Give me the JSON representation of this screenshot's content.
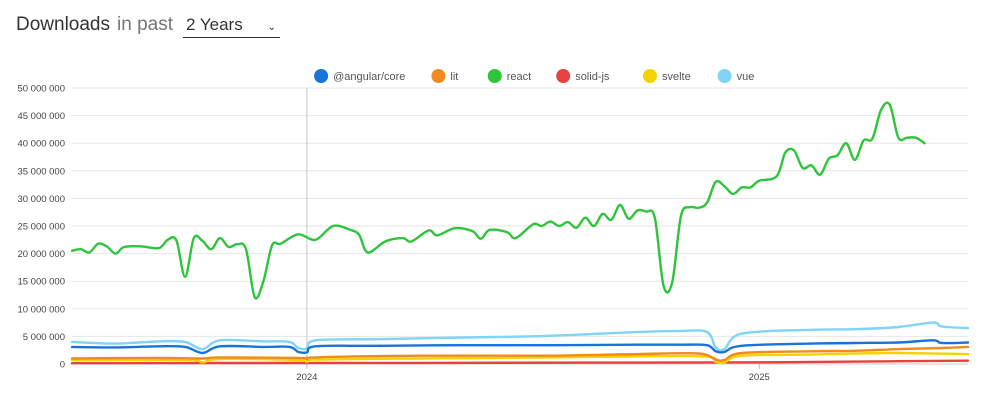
{
  "header": {
    "title": "Downloads",
    "subtitle": "in past",
    "range_value": "2 Years"
  },
  "chart_data": {
    "type": "line",
    "ylim": [
      0,
      50000000
    ],
    "y_ticks": [
      "0",
      "5 000 000",
      "10 000 000",
      "15 000 000",
      "20 000 000",
      "25 000 000",
      "30 000 000",
      "35 000 000",
      "40 000 000",
      "45 000 000",
      "50 000 000"
    ],
    "y_tick_values": [
      0,
      5000000,
      10000000,
      15000000,
      20000000,
      25000000,
      30000000,
      35000000,
      40000000,
      45000000,
      50000000
    ],
    "x_ticks": [
      {
        "label": "2024",
        "week": 27
      },
      {
        "label": "2025",
        "week": 79
      }
    ],
    "x_range": [
      0,
      103
    ],
    "gridlines": "horizontal",
    "legend_position": "top-center",
    "series": [
      {
        "name": "@angular/core",
        "color": "#1a73d9",
        "points": [
          [
            0,
            3100000
          ],
          [
            5,
            3000000
          ],
          [
            10,
            3200000
          ],
          [
            13,
            3100000
          ],
          [
            15,
            2000000
          ],
          [
            17,
            3200000
          ],
          [
            22,
            3100000
          ],
          [
            25,
            3100000
          ],
          [
            26,
            2200000
          ],
          [
            27,
            2100000
          ],
          [
            28,
            3200000
          ],
          [
            35,
            3300000
          ],
          [
            45,
            3400000
          ],
          [
            55,
            3400000
          ],
          [
            65,
            3500000
          ],
          [
            70,
            3500000
          ],
          [
            73,
            3400000
          ],
          [
            74,
            2300000
          ],
          [
            75,
            2200000
          ],
          [
            77,
            3300000
          ],
          [
            85,
            3700000
          ],
          [
            90,
            3800000
          ],
          [
            95,
            3900000
          ],
          [
            99,
            4300000
          ],
          [
            100,
            3800000
          ],
          [
            103,
            3900000
          ]
        ]
      },
      {
        "name": "lit",
        "color": "#f28a1e",
        "points": [
          [
            0,
            1000000
          ],
          [
            10,
            1100000
          ],
          [
            15,
            1000000
          ],
          [
            17,
            1200000
          ],
          [
            26,
            1100000
          ],
          [
            27,
            900000
          ],
          [
            28,
            1200000
          ],
          [
            40,
            1500000
          ],
          [
            55,
            1500000
          ],
          [
            65,
            1800000
          ],
          [
            72,
            1900000
          ],
          [
            74,
            800000
          ],
          [
            75,
            700000
          ],
          [
            77,
            2000000
          ],
          [
            85,
            2300000
          ],
          [
            90,
            2400000
          ],
          [
            95,
            2700000
          ],
          [
            100,
            2900000
          ],
          [
            103,
            3100000
          ]
        ]
      },
      {
        "name": "react",
        "color": "#2ec43c",
        "points": [
          [
            0,
            20500000
          ],
          [
            1,
            20800000
          ],
          [
            2,
            20200000
          ],
          [
            3,
            21800000
          ],
          [
            4,
            21300000
          ],
          [
            5,
            20000000
          ],
          [
            6,
            21200000
          ],
          [
            8,
            21300000
          ],
          [
            10,
            21000000
          ],
          [
            11,
            22500000
          ],
          [
            12,
            22400000
          ],
          [
            13,
            15800000
          ],
          [
            14,
            22800000
          ],
          [
            15,
            22300000
          ],
          [
            16,
            20800000
          ],
          [
            17,
            22800000
          ],
          [
            18,
            21200000
          ],
          [
            19,
            21700000
          ],
          [
            20,
            20800000
          ],
          [
            21,
            12100000
          ],
          [
            22,
            15000000
          ],
          [
            23,
            21500000
          ],
          [
            24,
            21800000
          ],
          [
            26,
            23500000
          ],
          [
            28,
            22500000
          ],
          [
            30,
            25000000
          ],
          [
            32,
            24300000
          ],
          [
            33,
            23400000
          ],
          [
            34,
            20200000
          ],
          [
            36,
            22200000
          ],
          [
            38,
            22800000
          ],
          [
            39,
            22200000
          ],
          [
            41,
            24200000
          ],
          [
            42,
            23300000
          ],
          [
            44,
            24600000
          ],
          [
            46,
            24100000
          ],
          [
            47,
            22700000
          ],
          [
            48,
            24300000
          ],
          [
            50,
            23900000
          ],
          [
            51,
            22800000
          ],
          [
            53,
            25300000
          ],
          [
            54,
            25000000
          ],
          [
            55,
            25800000
          ],
          [
            56,
            25000000
          ],
          [
            57,
            25700000
          ],
          [
            58,
            24700000
          ],
          [
            59,
            26500000
          ],
          [
            60,
            25000000
          ],
          [
            61,
            27200000
          ],
          [
            62,
            26100000
          ],
          [
            63,
            28800000
          ],
          [
            64,
            26300000
          ],
          [
            65,
            27800000
          ],
          [
            66,
            27600000
          ],
          [
            67,
            26500000
          ],
          [
            68,
            14200000
          ],
          [
            69,
            14800000
          ],
          [
            70,
            26800000
          ],
          [
            71,
            28400000
          ],
          [
            72,
            28300000
          ],
          [
            73,
            29200000
          ],
          [
            74,
            33000000
          ],
          [
            75,
            32200000
          ],
          [
            76,
            30800000
          ],
          [
            77,
            32000000
          ],
          [
            78,
            32000000
          ],
          [
            79,
            33200000
          ],
          [
            81,
            34000000
          ],
          [
            82,
            38300000
          ],
          [
            83,
            38700000
          ],
          [
            84,
            35500000
          ],
          [
            85,
            36000000
          ],
          [
            86,
            34300000
          ],
          [
            87,
            37200000
          ],
          [
            88,
            37800000
          ],
          [
            89,
            40000000
          ],
          [
            90,
            37000000
          ],
          [
            91,
            40500000
          ],
          [
            92,
            40800000
          ],
          [
            93,
            46000000
          ],
          [
            94,
            47000000
          ],
          [
            95,
            41000000
          ],
          [
            96,
            41000000
          ],
          [
            97,
            41000000
          ],
          [
            98,
            40000000
          ]
        ]
      },
      {
        "name": "solid-js",
        "color": "#e94040",
        "points": [
          [
            0,
            150000
          ],
          [
            20,
            180000
          ],
          [
            40,
            200000
          ],
          [
            60,
            250000
          ],
          [
            80,
            300000
          ],
          [
            95,
            500000
          ],
          [
            103,
            600000
          ]
        ]
      },
      {
        "name": "svelte",
        "color": "#f5d200",
        "points": [
          [
            0,
            700000
          ],
          [
            13,
            750000
          ],
          [
            15,
            300000
          ],
          [
            17,
            900000
          ],
          [
            26,
            700000
          ],
          [
            27,
            400000
          ],
          [
            28,
            800000
          ],
          [
            40,
            1000000
          ],
          [
            55,
            1200000
          ],
          [
            72,
            1400000
          ],
          [
            74,
            400000
          ],
          [
            75,
            300000
          ],
          [
            77,
            1500000
          ],
          [
            85,
            1700000
          ],
          [
            90,
            1900000
          ],
          [
            95,
            2000000
          ],
          [
            103,
            1800000
          ]
        ]
      },
      {
        "name": "vue",
        "color": "#7fd4f7",
        "points": [
          [
            0,
            4000000
          ],
          [
            5,
            3700000
          ],
          [
            10,
            4100000
          ],
          [
            13,
            4000000
          ],
          [
            15,
            2700000
          ],
          [
            17,
            4300000
          ],
          [
            22,
            4100000
          ],
          [
            25,
            4000000
          ],
          [
            26,
            2900000
          ],
          [
            27,
            2800000
          ],
          [
            28,
            4300000
          ],
          [
            35,
            4500000
          ],
          [
            45,
            4800000
          ],
          [
            55,
            5100000
          ],
          [
            65,
            5800000
          ],
          [
            70,
            6000000
          ],
          [
            73,
            5800000
          ],
          [
            74,
            3000000
          ],
          [
            75,
            2700000
          ],
          [
            77,
            5500000
          ],
          [
            85,
            6200000
          ],
          [
            90,
            6300000
          ],
          [
            95,
            6700000
          ],
          [
            99,
            7500000
          ],
          [
            100,
            6800000
          ],
          [
            103,
            6500000
          ]
        ]
      }
    ]
  }
}
